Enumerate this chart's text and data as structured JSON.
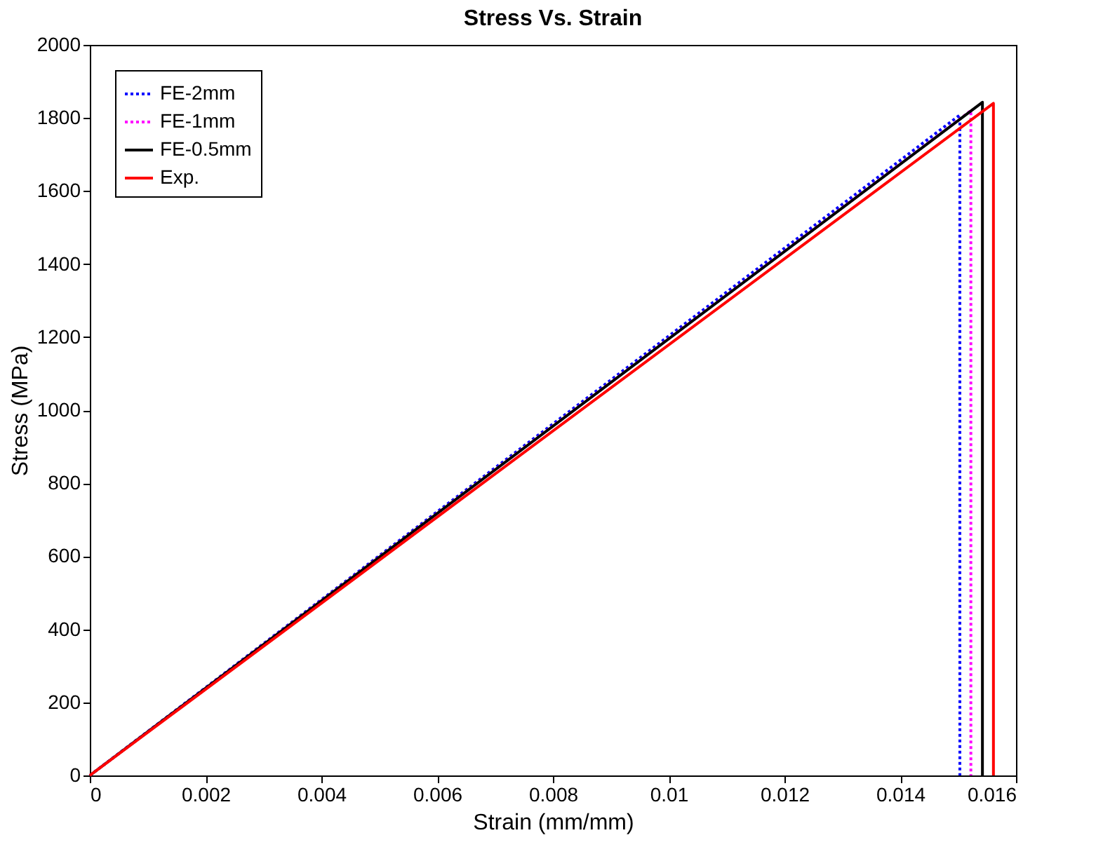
{
  "chart_data": {
    "type": "line",
    "title": "Stress Vs. Strain",
    "xlabel": "Strain (mm/mm)",
    "ylabel": "Stress (MPa)",
    "xlim": [
      0,
      0.016
    ],
    "xticks": [
      0,
      0.002,
      0.004,
      0.006,
      0.008,
      0.01,
      0.012,
      0.014,
      0.016
    ],
    "ylim": [
      0,
      2000
    ],
    "yticks": [
      0,
      200,
      400,
      600,
      800,
      1000,
      1200,
      1400,
      1600,
      1800,
      2000
    ],
    "grid": false,
    "legend": "top left",
    "marker": "none",
    "series": [
      {
        "name": "FE-2mm",
        "color": "#0000ff",
        "line_style": "dotted",
        "x": [
          0,
          0.01503,
          0.01503
        ],
        "values": [
          0,
          1808,
          0
        ]
      },
      {
        "name": "FE-1mm",
        "color": "#ff00ff",
        "line_style": "dotted",
        "x": [
          0,
          0.01522,
          0.01522
        ],
        "values": [
          0,
          1820,
          0
        ]
      },
      {
        "name": "FE-0.5mm",
        "color": "#000000",
        "line_style": "solid",
        "x": [
          0,
          0.01542,
          0.01542
        ],
        "values": [
          0,
          1843,
          0
        ]
      },
      {
        "name": "Exp.",
        "color": "#ff0000",
        "line_style": "solid",
        "x": [
          0,
          0.01561,
          0.01561
        ],
        "values": [
          0,
          1840,
          0
        ]
      }
    ]
  }
}
